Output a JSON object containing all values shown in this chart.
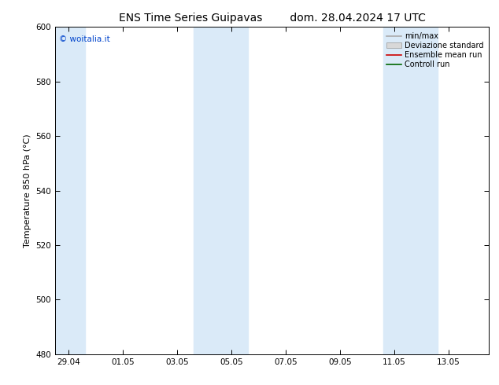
{
  "title_left": "ENS Time Series Guipavas",
  "title_right": "dom. 28.04.2024 17 UTC",
  "ylabel": "Temperature 850 hPa (°C)",
  "ylim": [
    480,
    600
  ],
  "yticks": [
    480,
    500,
    520,
    540,
    560,
    580,
    600
  ],
  "xtick_positions": [
    0,
    2,
    4,
    6,
    8,
    10,
    12,
    14
  ],
  "xtick_labels": [
    "29.04",
    "01.05",
    "03.05",
    "05.05",
    "07.05",
    "09.05",
    "11.05",
    "13.05"
  ],
  "xlim": [
    -0.5,
    15.5
  ],
  "shade_bands": [
    {
      "xmin": -0.5,
      "xmax": 0.6
    },
    {
      "xmin": 4.6,
      "xmax": 6.6
    },
    {
      "xmin": 11.6,
      "xmax": 13.6
    }
  ],
  "shade_color": "#daeaf8",
  "watermark": "© woitalia.it",
  "watermark_color": "#0044cc",
  "legend_labels": [
    "min/max",
    "Deviazione standard",
    "Ensemble mean run",
    "Controll run"
  ],
  "bg_color": "#ffffff",
  "title_fontsize": 10,
  "axis_fontsize": 8,
  "tick_fontsize": 7.5
}
